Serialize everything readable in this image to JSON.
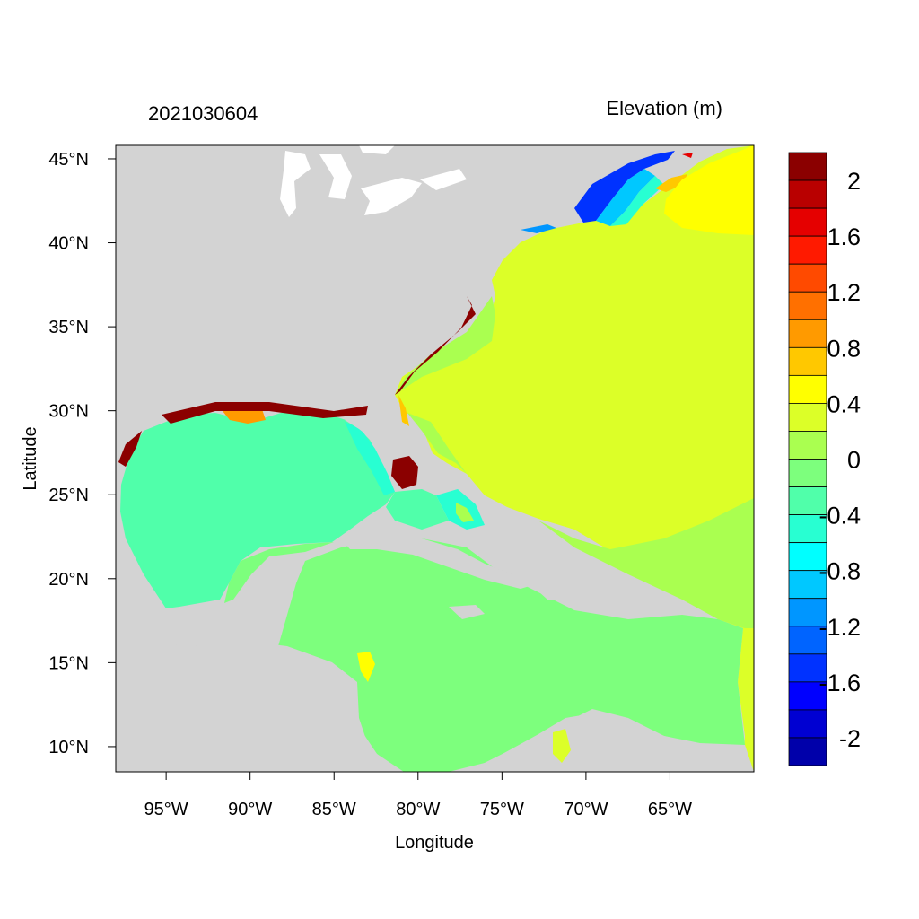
{
  "title_left": "2021030604",
  "title_right": "Elevation (m)",
  "x_axis": {
    "label": "Longitude",
    "range": [
      -98,
      -60
    ],
    "ticks": [
      {
        "value": -95,
        "label": "95°W"
      },
      {
        "value": -90,
        "label": "90°W"
      },
      {
        "value": -85,
        "label": "85°W"
      },
      {
        "value": -80,
        "label": "80°W"
      },
      {
        "value": -75,
        "label": "75°W"
      },
      {
        "value": -70,
        "label": "70°W"
      },
      {
        "value": -65,
        "label": "65°W"
      }
    ]
  },
  "y_axis": {
    "label": "Latitude",
    "range": [
      8.5,
      45.8
    ],
    "ticks": [
      {
        "value": 45,
        "label": "45°N"
      },
      {
        "value": 40,
        "label": "40°N"
      },
      {
        "value": 35,
        "label": "35°N"
      },
      {
        "value": 30,
        "label": "30°N"
      },
      {
        "value": 25,
        "label": "25°N"
      },
      {
        "value": 20,
        "label": "20°N"
      },
      {
        "value": 15,
        "label": "15°N"
      },
      {
        "value": 10,
        "label": "10°N"
      }
    ]
  },
  "colorbar": {
    "colors_top_to_bottom": [
      "#8b0000",
      "#b90000",
      "#e50000",
      "#ff1a00",
      "#ff4a00",
      "#ff7000",
      "#ff9a00",
      "#ffc800",
      "#ffff00",
      "#dcff28",
      "#aaff50",
      "#7dff7d",
      "#50ffaa",
      "#28ffd2",
      "#00ffff",
      "#00c8ff",
      "#0096ff",
      "#0064ff",
      "#0032ff",
      "#0000ff",
      "#0000d2",
      "#0000aa"
    ],
    "labels": [
      {
        "boundary": 1,
        "text": "2"
      },
      {
        "boundary": 3,
        "text": "1.6"
      },
      {
        "boundary": 5,
        "text": "1.2"
      },
      {
        "boundary": 7,
        "text": "0.8"
      },
      {
        "boundary": 9,
        "text": "0.4"
      },
      {
        "boundary": 11,
        "text": "0"
      },
      {
        "boundary": 13,
        "text": "-0.4"
      },
      {
        "boundary": 15,
        "text": "-0.8"
      },
      {
        "boundary": 17,
        "text": "-1.2"
      },
      {
        "boundary": 19,
        "text": "-1.6"
      },
      {
        "boundary": 21,
        "text": "-2"
      }
    ]
  },
  "colors": {
    "land": "#d3d3d3",
    "atlantic": "#dcff28",
    "gulf": "#50ffaa",
    "caribbean": "#7dff7d",
    "shelf": "#aaff50",
    "gulf_of_maine": "#0032ff",
    "surge_high": "#8b0000"
  }
}
